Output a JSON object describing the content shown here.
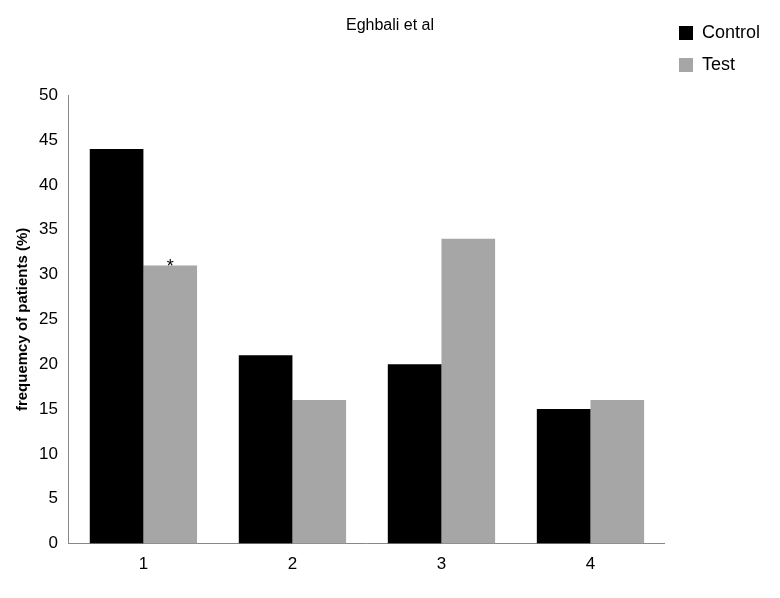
{
  "chart_data": {
    "type": "bar",
    "title": "Eghbali et al",
    "y_label": "frequemcy of patients (%)",
    "categories": [
      "1",
      "2",
      "3",
      "4"
    ],
    "series": [
      {
        "name": "Control",
        "color": "#000000",
        "values": [
          44,
          21,
          20,
          15
        ]
      },
      {
        "name": "Test",
        "color": "#a6a6a6",
        "values": [
          31,
          16,
          34,
          16
        ]
      }
    ],
    "annotations": [
      {
        "text": "*",
        "category": "1",
        "series": "Test"
      }
    ],
    "ylim": [
      0,
      50
    ],
    "yticks": [
      0,
      5,
      10,
      15,
      20,
      25,
      30,
      35,
      40,
      45,
      50
    ],
    "grid": false,
    "legend": "top right"
  }
}
